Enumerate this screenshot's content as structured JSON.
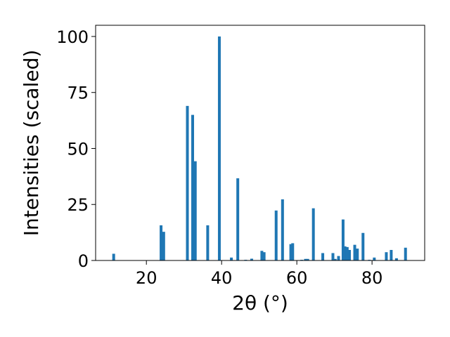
{
  "chart_data": {
    "type": "bar",
    "xlabel": "2θ (°)",
    "ylabel": "Intensities (scaled)",
    "xlim": [
      6.5,
      94
    ],
    "ylim": [
      0,
      105
    ],
    "xticks": [
      20,
      40,
      60,
      80
    ],
    "yticks": [
      0,
      25,
      50,
      75,
      100
    ],
    "bar_width": 0.75,
    "bar_color": "#1f77b4",
    "grid": false,
    "legend": "none",
    "x": [
      11.3,
      23.9,
      24.6,
      30.9,
      32.3,
      33.0,
      36.3,
      39.4,
      42.6,
      44.3,
      46.4,
      48.0,
      50.7,
      51.3,
      54.5,
      56.2,
      58.4,
      58.9,
      61.3,
      62.3,
      62.9,
      64.4,
      66.9,
      69.6,
      70.2,
      71.1,
      72.3,
      72.8,
      73.4,
      74.0,
      75.4,
      76.1,
      77.6,
      79.3,
      80.6,
      83.8,
      85.1,
      86.5,
      88.9
    ],
    "values": [
      3.0,
      15.7,
      12.8,
      69.0,
      65.0,
      44.3,
      15.7,
      100.0,
      1.3,
      36.7,
      0.3,
      0.8,
      4.3,
      3.7,
      22.3,
      27.3,
      7.3,
      7.7,
      0.3,
      0.7,
      0.7,
      23.3,
      3.3,
      3.3,
      0.7,
      2.0,
      18.3,
      6.3,
      6.0,
      4.7,
      7.0,
      5.3,
      12.3,
      0.3,
      1.3,
      3.7,
      4.7,
      1.0,
      5.7
    ]
  }
}
